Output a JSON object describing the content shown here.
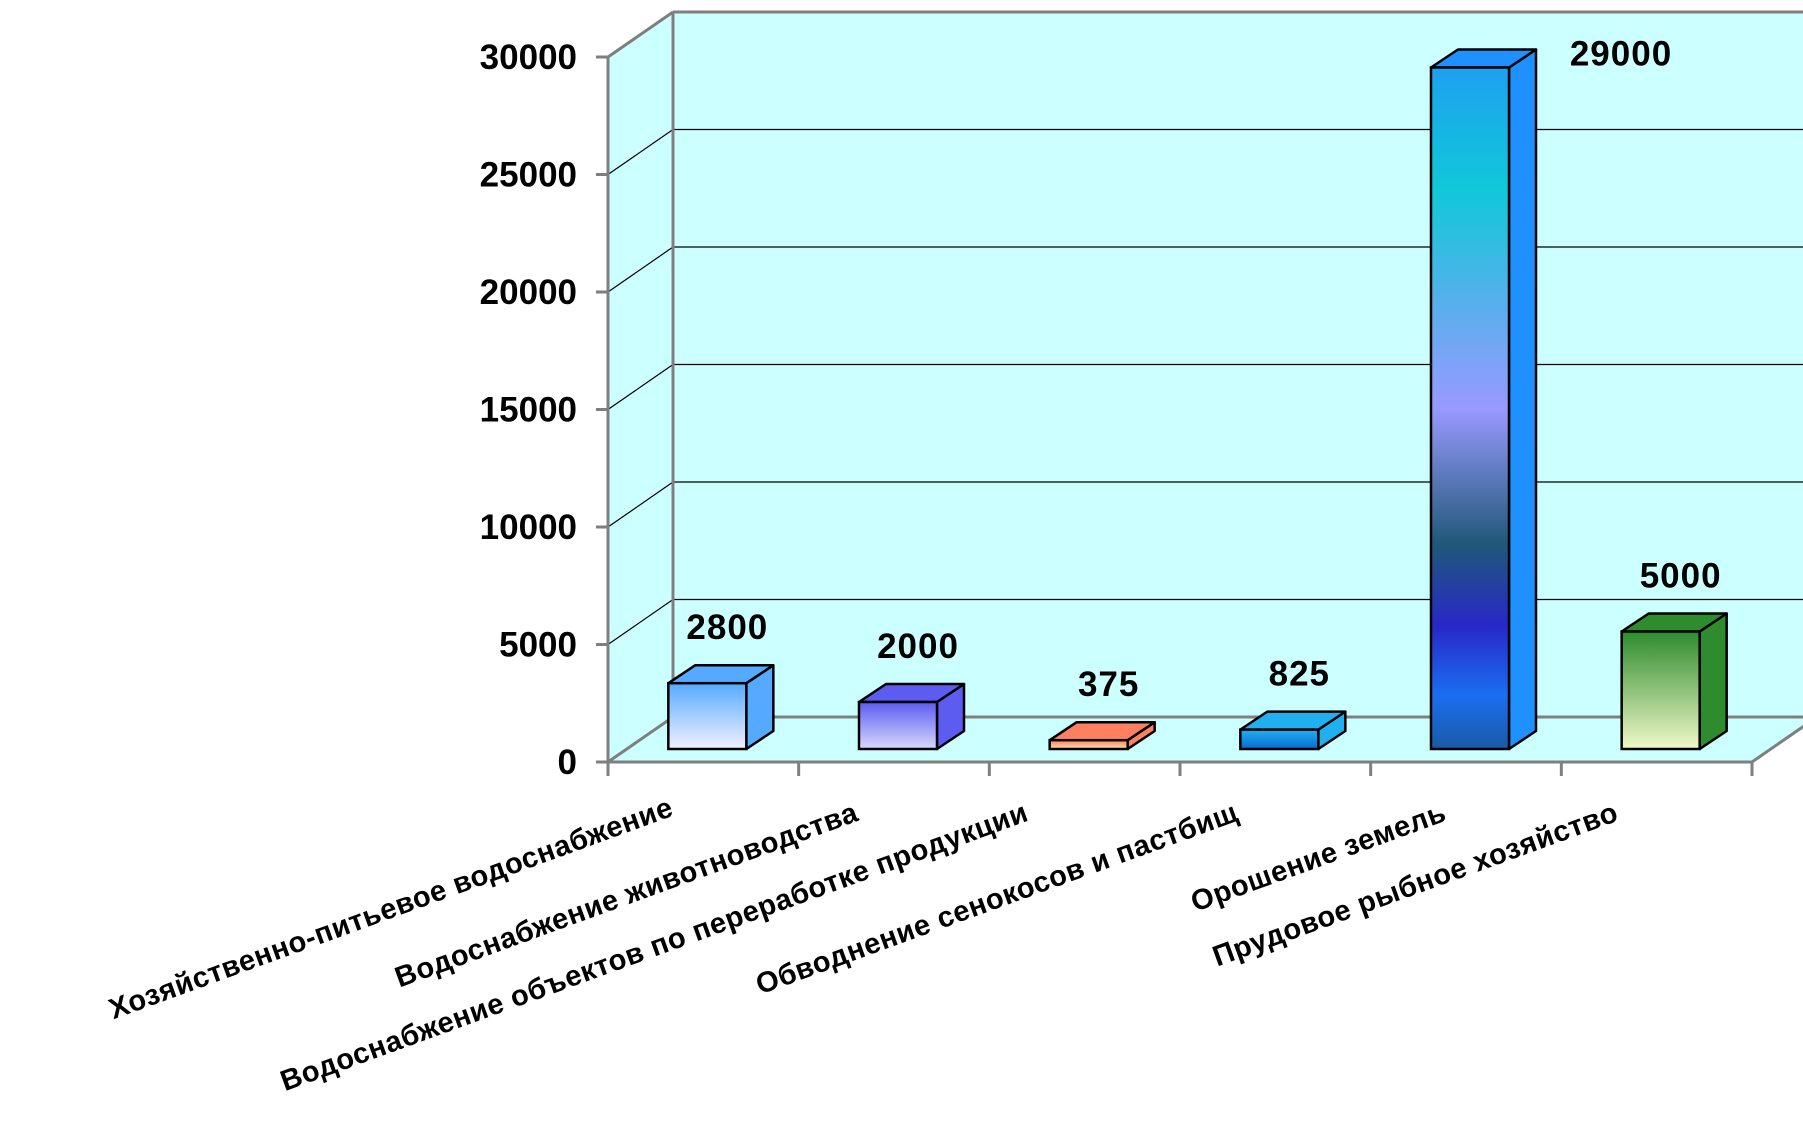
{
  "chart_data": {
    "type": "bar",
    "title": "",
    "xlabel": "",
    "ylabel": "",
    "ylim": [
      0,
      30000
    ],
    "y_ticks": [
      0,
      5000,
      10000,
      15000,
      20000,
      25000,
      30000
    ],
    "y_tick_labels": [
      "0",
      "5000",
      "10000",
      "15000",
      "20000",
      "25000",
      "30000"
    ],
    "grid": true,
    "three_d": true,
    "wall_color": "#ccffff",
    "categories": [
      "Хозяйственно-питьевое водоснабжение",
      "Водоснабжение животноводства",
      "Водоснабжение объектов по переработке продукции",
      "Обводнение сенокосов и пастбищ",
      "Орошение земель",
      "Прудовое  рыбное хозяйство"
    ],
    "values": [
      2800,
      2000,
      375,
      825,
      29000,
      5000
    ],
    "value_labels": [
      "2800",
      "2000",
      "375",
      "825",
      "29000",
      "5000"
    ],
    "bar_colors": [
      [
        "#55aaff",
        "#f4f0ff"
      ],
      [
        "#5c5cf0",
        "#d8d8ff"
      ],
      [
        "#ff8060",
        "#ffe4b0"
      ],
      [
        "#20b0f0",
        "#0a6ad0"
      ],
      [
        "#1e90ff",
        "#9999ff"
      ],
      [
        "#2e8b2e",
        "#f0f8c8"
      ]
    ]
  }
}
